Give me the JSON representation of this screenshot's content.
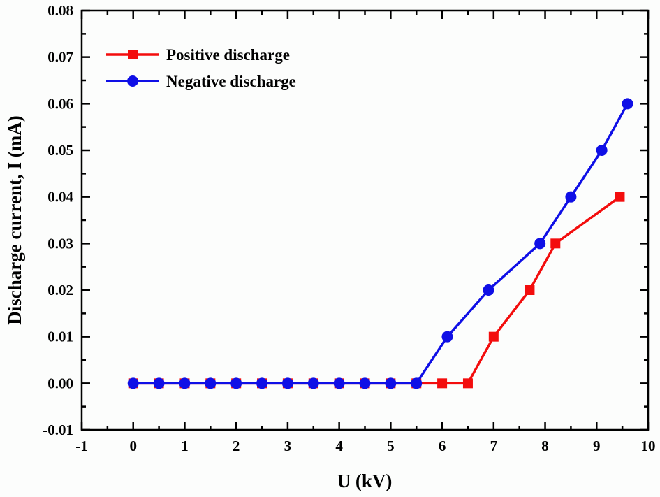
{
  "figure": {
    "background": "#fcfdfc",
    "axis_color": "#000000",
    "text_color": "#000000"
  },
  "chart_data": {
    "type": "line",
    "title": "",
    "xlabel": "U (kV)",
    "ylabel": "Discharge current, I (mA)",
    "xlim": [
      -1,
      10
    ],
    "ylim": [
      -0.01,
      0.08
    ],
    "grid": false,
    "legend_position": "top-left",
    "x_major_ticks": [
      -1,
      0,
      1,
      2,
      3,
      4,
      5,
      6,
      7,
      8,
      9,
      10
    ],
    "x_tick_labels": [
      "-1",
      "0",
      "1",
      "2",
      "3",
      "4",
      "5",
      "6",
      "7",
      "8",
      "9",
      "10"
    ],
    "x_minor_step": 0.5,
    "y_major_ticks": [
      -0.01,
      0.0,
      0.01,
      0.02,
      0.03,
      0.04,
      0.05,
      0.06,
      0.07,
      0.08
    ],
    "y_tick_labels": [
      "-0.01",
      "0.00",
      "0.01",
      "0.02",
      "0.03",
      "0.04",
      "0.05",
      "0.06",
      "0.07",
      "0.08"
    ],
    "y_minor_step": 0.005,
    "series": [
      {
        "name": "Positive discharge",
        "color": "#f30d0d",
        "marker": "square",
        "x": [
          0,
          0.5,
          1,
          1.5,
          2,
          2.5,
          3,
          3.5,
          4,
          4.5,
          5,
          5.5,
          6,
          6.5,
          7,
          7.7,
          8.2,
          9.45
        ],
        "y": [
          0,
          0,
          0,
          0,
          0,
          0,
          0,
          0,
          0,
          0,
          0,
          0,
          0,
          0,
          0.01,
          0.02,
          0.03,
          0.04
        ]
      },
      {
        "name": "Negative discharge",
        "color": "#0f0fe6",
        "marker": "circle",
        "x": [
          0,
          0.5,
          1,
          1.5,
          2,
          2.5,
          3,
          3.5,
          4,
          4.5,
          5,
          5.5,
          6.1,
          6.9,
          7.9,
          8.5,
          9.1,
          9.6
        ],
        "y": [
          0,
          0,
          0,
          0,
          0,
          0,
          0,
          0,
          0,
          0,
          0,
          0,
          0.01,
          0.02,
          0.03,
          0.04,
          0.05,
          0.06
        ]
      }
    ]
  }
}
